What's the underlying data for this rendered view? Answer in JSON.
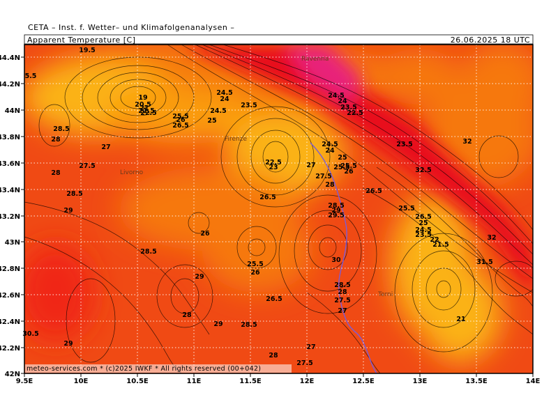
{
  "header": {
    "institute": "CETA – Inst. f. Wetter– und Klimafolgenanalysen –",
    "variable": "Apparent Temperature [C]",
    "valid_time": "26.06.2025  18 UTC",
    "footer": "meteo-services.com * (c)2025 IWKF * All rights reserved (00+042)"
  },
  "axes": {
    "lon_ticks": [
      "9.5E",
      "10E",
      "10.5E",
      "11E",
      "11.5E",
      "12E",
      "12.5E",
      "13E",
      "13.5E",
      "14E"
    ],
    "lat_ticks": [
      "44.4N",
      "44.2N",
      "44N",
      "43.8N",
      "43.6N",
      "43.4N",
      "43.2N",
      "43N",
      "42.8N",
      "42.6N",
      "42.4N",
      "42.2N",
      "42N"
    ]
  },
  "colors": {
    "deep_red": "#e8101a",
    "red": "#f02818",
    "red_orange": "#f04a14",
    "orange": "#f6780e",
    "light_orange": "#fa9c0c",
    "yellow_orange": "#fbb216",
    "magenta": "#e8207a",
    "river": "#7a5bd8"
  },
  "cities": [
    {
      "name": "Ravenna"
    },
    {
      "name": "Firenze"
    },
    {
      "name": "Livorno"
    },
    {
      "name": "Terni"
    }
  ],
  "contour_labels": [
    "19.5",
    "5.5",
    "19",
    "20.5",
    "21",
    "21.5",
    "22.5",
    "24.5",
    "24",
    "24.5",
    "23.5",
    "25.5",
    "26",
    "26.5",
    "25",
    "28.5",
    "28",
    "27",
    "27.5",
    "28",
    "28.5",
    "29",
    "26",
    "28.5",
    "29",
    "28",
    "29",
    "28.5",
    "26.5",
    "25.5",
    "26",
    "23.5",
    "22.5",
    "23",
    "27",
    "27.5",
    "28",
    "24.5",
    "24",
    "25",
    "25.5",
    "26",
    "26.5",
    "24.5",
    "24",
    "23.5",
    "22.5",
    "28.5",
    "29",
    "29.5",
    "30",
    "28.5",
    "28",
    "27.5",
    "27",
    "26.5",
    "25.5",
    "32",
    "32.5",
    "26.5",
    "25",
    "24.5",
    "23.5",
    "22",
    "21.5",
    "32",
    "31.5",
    "21",
    "28",
    "27",
    "27.5",
    "30.5",
    "29",
    "25.5"
  ]
}
